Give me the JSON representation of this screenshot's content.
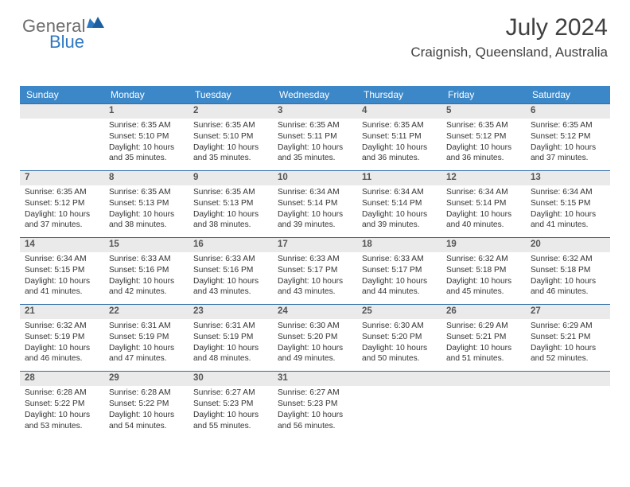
{
  "brand": {
    "text1": "General",
    "text2": "Blue",
    "color1": "#6c6c6c",
    "color2": "#2f78c2"
  },
  "title": "July 2024",
  "location": "Craignish, Queensland, Australia",
  "header_bg": "#3b87c8",
  "daynum_bg": "#eaeaea",
  "rule_color": "#2f6ea8",
  "columns": [
    "Sunday",
    "Monday",
    "Tuesday",
    "Wednesday",
    "Thursday",
    "Friday",
    "Saturday"
  ],
  "weeks": [
    [
      null,
      {
        "n": "1",
        "sr": "6:35 AM",
        "ss": "5:10 PM",
        "dl": "10 hours and 35 minutes."
      },
      {
        "n": "2",
        "sr": "6:35 AM",
        "ss": "5:10 PM",
        "dl": "10 hours and 35 minutes."
      },
      {
        "n": "3",
        "sr": "6:35 AM",
        "ss": "5:11 PM",
        "dl": "10 hours and 35 minutes."
      },
      {
        "n": "4",
        "sr": "6:35 AM",
        "ss": "5:11 PM",
        "dl": "10 hours and 36 minutes."
      },
      {
        "n": "5",
        "sr": "6:35 AM",
        "ss": "5:12 PM",
        "dl": "10 hours and 36 minutes."
      },
      {
        "n": "6",
        "sr": "6:35 AM",
        "ss": "5:12 PM",
        "dl": "10 hours and 37 minutes."
      }
    ],
    [
      {
        "n": "7",
        "sr": "6:35 AM",
        "ss": "5:12 PM",
        "dl": "10 hours and 37 minutes."
      },
      {
        "n": "8",
        "sr": "6:35 AM",
        "ss": "5:13 PM",
        "dl": "10 hours and 38 minutes."
      },
      {
        "n": "9",
        "sr": "6:35 AM",
        "ss": "5:13 PM",
        "dl": "10 hours and 38 minutes."
      },
      {
        "n": "10",
        "sr": "6:34 AM",
        "ss": "5:14 PM",
        "dl": "10 hours and 39 minutes."
      },
      {
        "n": "11",
        "sr": "6:34 AM",
        "ss": "5:14 PM",
        "dl": "10 hours and 39 minutes."
      },
      {
        "n": "12",
        "sr": "6:34 AM",
        "ss": "5:14 PM",
        "dl": "10 hours and 40 minutes."
      },
      {
        "n": "13",
        "sr": "6:34 AM",
        "ss": "5:15 PM",
        "dl": "10 hours and 41 minutes."
      }
    ],
    [
      {
        "n": "14",
        "sr": "6:34 AM",
        "ss": "5:15 PM",
        "dl": "10 hours and 41 minutes."
      },
      {
        "n": "15",
        "sr": "6:33 AM",
        "ss": "5:16 PM",
        "dl": "10 hours and 42 minutes."
      },
      {
        "n": "16",
        "sr": "6:33 AM",
        "ss": "5:16 PM",
        "dl": "10 hours and 43 minutes."
      },
      {
        "n": "17",
        "sr": "6:33 AM",
        "ss": "5:17 PM",
        "dl": "10 hours and 43 minutes."
      },
      {
        "n": "18",
        "sr": "6:33 AM",
        "ss": "5:17 PM",
        "dl": "10 hours and 44 minutes."
      },
      {
        "n": "19",
        "sr": "6:32 AM",
        "ss": "5:18 PM",
        "dl": "10 hours and 45 minutes."
      },
      {
        "n": "20",
        "sr": "6:32 AM",
        "ss": "5:18 PM",
        "dl": "10 hours and 46 minutes."
      }
    ],
    [
      {
        "n": "21",
        "sr": "6:32 AM",
        "ss": "5:19 PM",
        "dl": "10 hours and 46 minutes."
      },
      {
        "n": "22",
        "sr": "6:31 AM",
        "ss": "5:19 PM",
        "dl": "10 hours and 47 minutes."
      },
      {
        "n": "23",
        "sr": "6:31 AM",
        "ss": "5:19 PM",
        "dl": "10 hours and 48 minutes."
      },
      {
        "n": "24",
        "sr": "6:30 AM",
        "ss": "5:20 PM",
        "dl": "10 hours and 49 minutes."
      },
      {
        "n": "25",
        "sr": "6:30 AM",
        "ss": "5:20 PM",
        "dl": "10 hours and 50 minutes."
      },
      {
        "n": "26",
        "sr": "6:29 AM",
        "ss": "5:21 PM",
        "dl": "10 hours and 51 minutes."
      },
      {
        "n": "27",
        "sr": "6:29 AM",
        "ss": "5:21 PM",
        "dl": "10 hours and 52 minutes."
      }
    ],
    [
      {
        "n": "28",
        "sr": "6:28 AM",
        "ss": "5:22 PM",
        "dl": "10 hours and 53 minutes."
      },
      {
        "n": "29",
        "sr": "6:28 AM",
        "ss": "5:22 PM",
        "dl": "10 hours and 54 minutes."
      },
      {
        "n": "30",
        "sr": "6:27 AM",
        "ss": "5:23 PM",
        "dl": "10 hours and 55 minutes."
      },
      {
        "n": "31",
        "sr": "6:27 AM",
        "ss": "5:23 PM",
        "dl": "10 hours and 56 minutes."
      },
      null,
      null,
      null
    ]
  ]
}
